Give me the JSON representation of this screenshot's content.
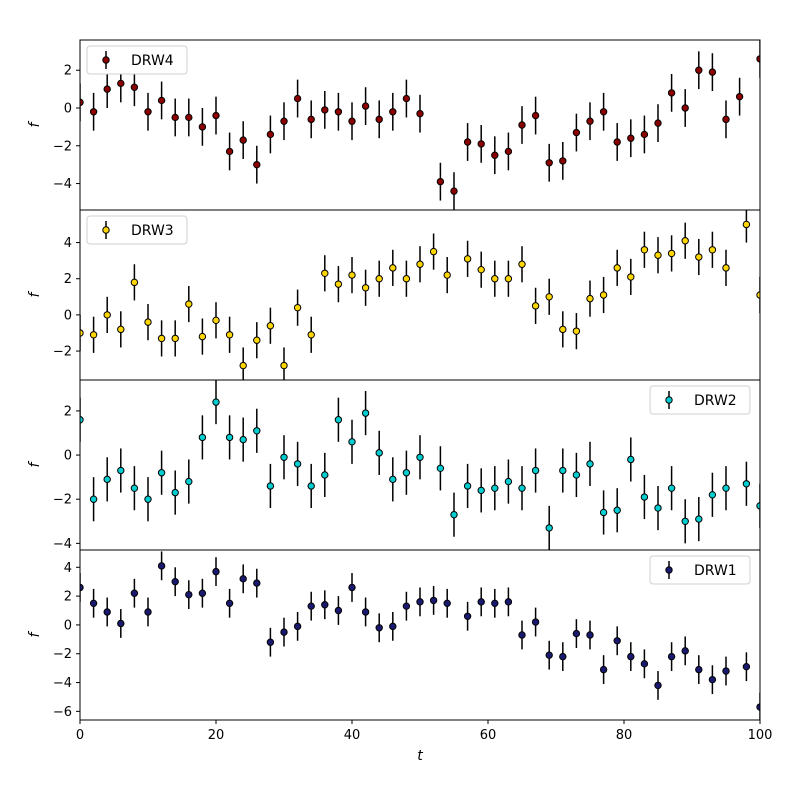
{
  "figure": {
    "xlabel": "t",
    "ylabel": "f"
  },
  "chart_data": [
    {
      "type": "scatter",
      "name": "DRW4",
      "color": "#8b0000",
      "legend": "top-left",
      "xlim": [
        0,
        100
      ],
      "ylim": [
        -5.4,
        3.6
      ],
      "yticks": [
        -4,
        -2,
        0,
        2
      ],
      "x": [
        0,
        2,
        4,
        6,
        8,
        10,
        12,
        14,
        16,
        18,
        20,
        22,
        24,
        26,
        28,
        30,
        32,
        34,
        36,
        38,
        40,
        42,
        44,
        46,
        48,
        50,
        53,
        55,
        57,
        59,
        61,
        63,
        65,
        67,
        69,
        71,
        73,
        75,
        77,
        79,
        81,
        83,
        85,
        87,
        89,
        91,
        93,
        95,
        97,
        100
      ],
      "y": [
        0.3,
        -0.2,
        1.0,
        1.3,
        1.1,
        -0.2,
        0.4,
        -0.5,
        -0.5,
        -1.0,
        -0.4,
        -2.3,
        -1.7,
        -3.0,
        -1.4,
        -0.7,
        0.5,
        -0.6,
        -0.1,
        -0.2,
        -0.7,
        0.1,
        -0.6,
        -0.2,
        0.5,
        -0.3,
        -3.9,
        -4.4,
        -1.8,
        -1.9,
        -2.5,
        -2.3,
        -0.9,
        -0.4,
        -2.9,
        -2.8,
        -1.3,
        -0.7,
        -0.2,
        -1.8,
        -1.6,
        -1.4,
        -0.8,
        0.8,
        0.0,
        2.0,
        1.9,
        -0.6,
        0.6,
        2.6
      ],
      "yerr": 1.0
    },
    {
      "type": "scatter",
      "name": "DRW3",
      "color": "#ffd700",
      "legend": "top-left",
      "xlim": [
        0,
        100
      ],
      "ylim": [
        -3.6,
        5.8
      ],
      "yticks": [
        -2,
        0,
        2,
        4
      ],
      "x": [
        0,
        2,
        4,
        6,
        8,
        10,
        12,
        14,
        16,
        18,
        20,
        22,
        24,
        26,
        28,
        30,
        32,
        34,
        36,
        38,
        40,
        42,
        44,
        46,
        48,
        50,
        52,
        54,
        57,
        59,
        61,
        63,
        65,
        67,
        69,
        71,
        73,
        75,
        77,
        79,
        81,
        83,
        85,
        87,
        89,
        91,
        93,
        95,
        98,
        100
      ],
      "y": [
        -1.0,
        -1.1,
        0.0,
        -0.8,
        1.8,
        -0.4,
        -1.3,
        -1.3,
        0.6,
        -1.2,
        -0.3,
        -1.1,
        -2.8,
        -1.4,
        -0.6,
        -2.8,
        0.4,
        -1.1,
        2.3,
        1.7,
        2.2,
        1.5,
        2.0,
        2.6,
        2.0,
        2.8,
        3.5,
        2.2,
        3.1,
        2.5,
        2.0,
        2.0,
        2.8,
        0.5,
        1.0,
        -0.8,
        -0.9,
        0.9,
        1.1,
        2.6,
        2.1,
        3.6,
        3.3,
        3.4,
        4.1,
        3.2,
        3.6,
        2.6,
        5.0,
        1.1
      ],
      "yerr": 1.0
    },
    {
      "type": "scatter",
      "name": "DRW2",
      "color": "#00ced1",
      "legend": "top-right",
      "xlim": [
        0,
        100
      ],
      "ylim": [
        -4.3,
        3.4
      ],
      "yticks": [
        -4,
        -2,
        0,
        2
      ],
      "x": [
        0,
        2,
        4,
        6,
        8,
        10,
        12,
        14,
        16,
        18,
        20,
        22,
        24,
        26,
        28,
        30,
        32,
        34,
        36,
        38,
        40,
        42,
        44,
        46,
        48,
        50,
        53,
        55,
        57,
        59,
        61,
        63,
        65,
        67,
        69,
        71,
        73,
        75,
        77,
        79,
        81,
        83,
        85,
        87,
        89,
        91,
        93,
        95,
        98,
        100
      ],
      "y": [
        1.6,
        -2.0,
        -1.1,
        -0.7,
        -1.5,
        -2.0,
        -0.8,
        -1.7,
        -1.2,
        0.8,
        2.4,
        0.8,
        0.7,
        1.1,
        -1.4,
        -0.1,
        -0.4,
        -1.4,
        -0.9,
        1.6,
        0.6,
        1.9,
        0.1,
        -1.1,
        -0.8,
        -0.1,
        -0.6,
        -2.7,
        -1.4,
        -1.6,
        -1.5,
        -1.2,
        -1.5,
        -0.7,
        -3.3,
        -0.7,
        -0.9,
        -0.4,
        -2.6,
        -2.5,
        -0.2,
        -1.9,
        -2.4,
        -1.5,
        -3.0,
        -2.9,
        -1.8,
        -1.5,
        -1.3,
        -2.3
      ],
      "yerr": 1.0
    },
    {
      "type": "scatter",
      "name": "DRW1",
      "color": "#191970",
      "legend": "top-right",
      "xlim": [
        0,
        100
      ],
      "ylim": [
        -6.6,
        5.2
      ],
      "xticks": [
        0,
        20,
        40,
        60,
        80,
        100
      ],
      "yticks": [
        -6,
        -4,
        -2,
        0,
        2,
        4
      ],
      "x": [
        0,
        2,
        4,
        6,
        8,
        10,
        12,
        14,
        16,
        18,
        20,
        22,
        24,
        26,
        28,
        30,
        32,
        34,
        36,
        38,
        40,
        42,
        44,
        46,
        48,
        50,
        52,
        54,
        57,
        59,
        61,
        63,
        65,
        67,
        69,
        71,
        73,
        75,
        77,
        79,
        81,
        83,
        85,
        87,
        89,
        91,
        93,
        95,
        98,
        100
      ],
      "y": [
        2.6,
        1.5,
        0.9,
        0.1,
        2.2,
        0.9,
        4.1,
        3.0,
        2.1,
        2.2,
        3.7,
        1.5,
        3.2,
        2.9,
        -1.2,
        -0.5,
        -0.1,
        1.3,
        1.4,
        1.0,
        2.6,
        0.9,
        -0.2,
        -0.1,
        1.3,
        1.6,
        1.7,
        1.5,
        0.6,
        1.6,
        1.5,
        1.6,
        -0.7,
        0.2,
        -2.1,
        -2.2,
        -0.6,
        -0.7,
        -3.1,
        -1.1,
        -2.2,
        -2.7,
        -4.2,
        -2.2,
        -1.8,
        -3.1,
        -3.8,
        -3.2,
        -2.9,
        -5.7
      ],
      "yerr": 1.0
    }
  ]
}
